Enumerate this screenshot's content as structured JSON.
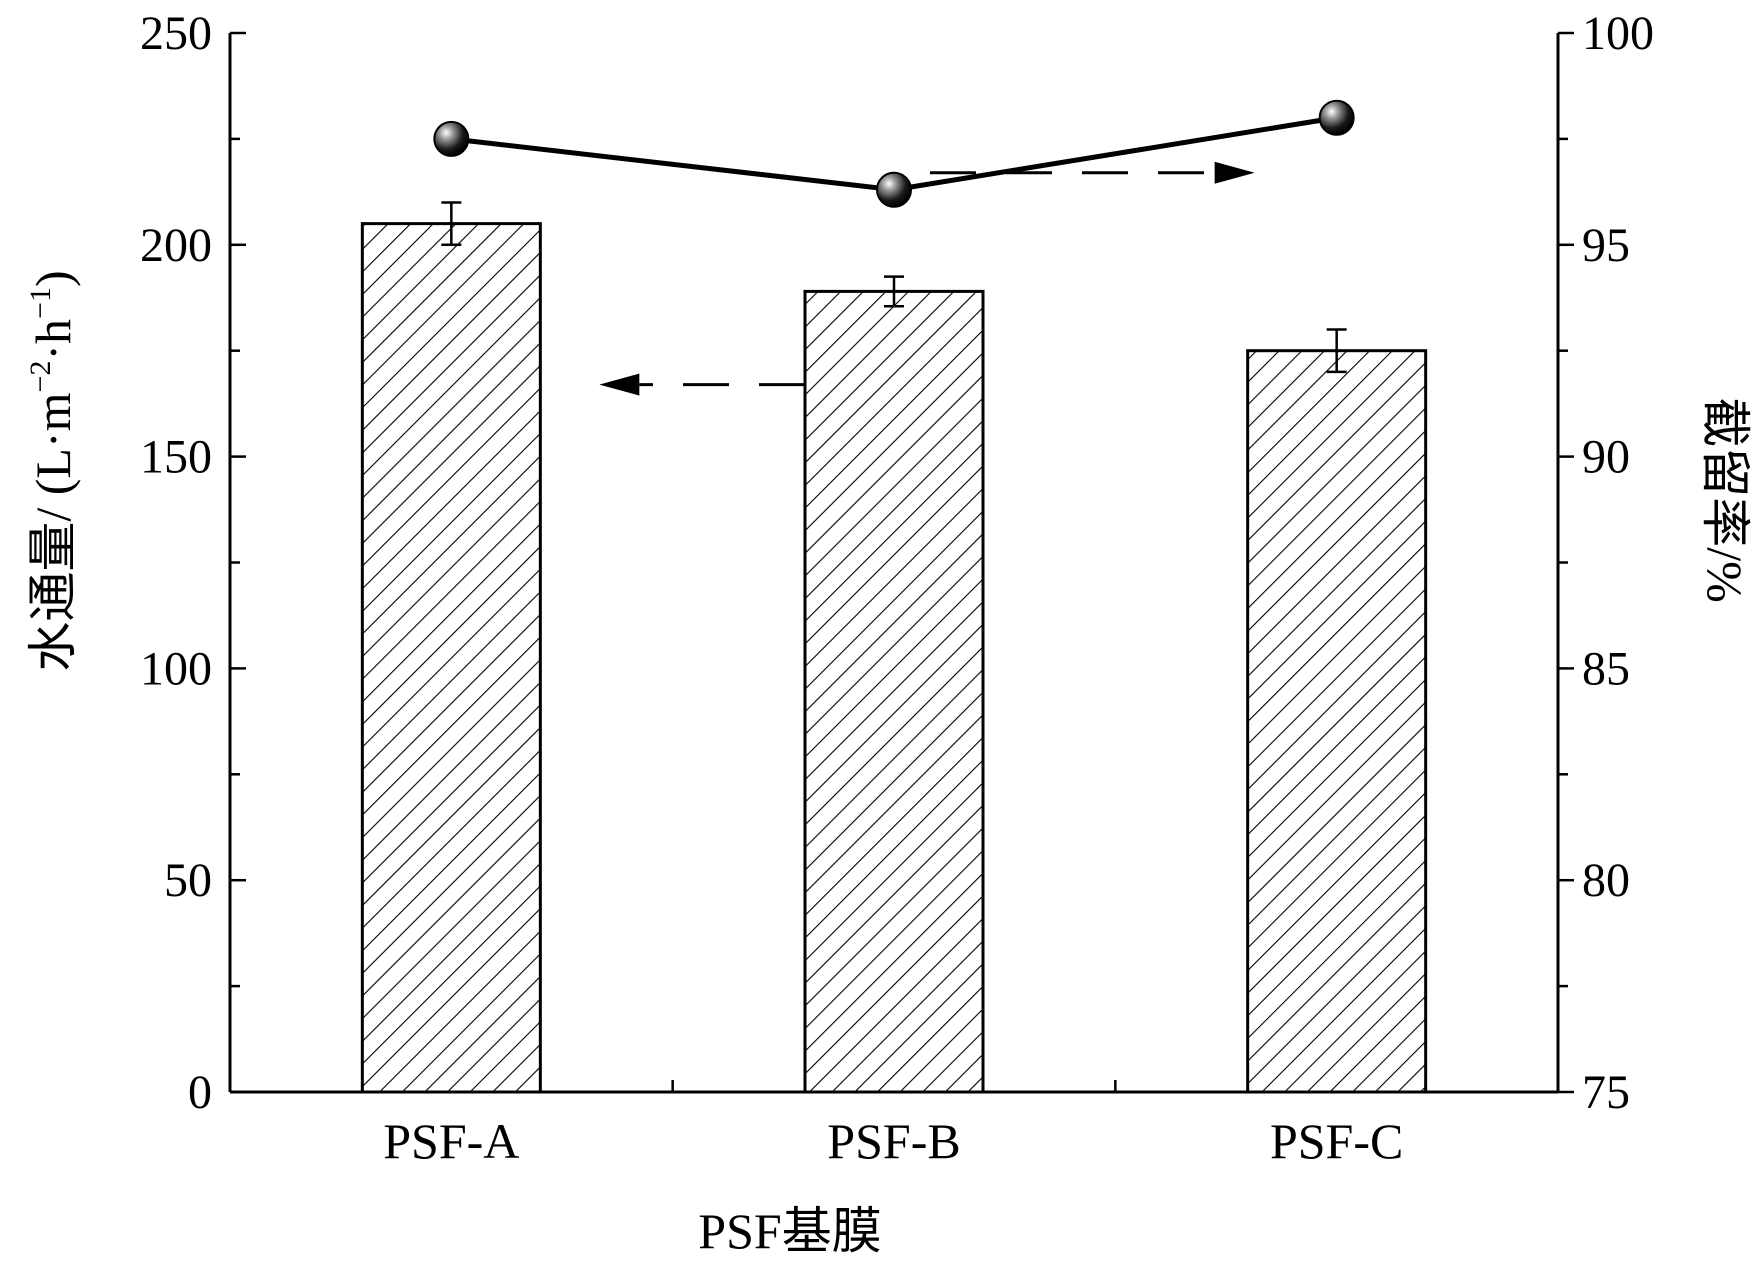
{
  "chart_data": {
    "type": "bar",
    "categories": [
      "PSF-A",
      "PSF-B",
      "PSF-C"
    ],
    "xlabel": "PSF基膜",
    "ylabel": "水通量/ (L·m⁻²·h⁻¹)",
    "ylabel_parts": {
      "main": "水通量/ (L",
      "dot1": "·m",
      "sup1": "−2",
      "dot2": "·h",
      "sup2": "−1",
      "close": ")"
    },
    "y2label": "截留率/%",
    "ylim": [
      0,
      250
    ],
    "y2lim": [
      75,
      100
    ],
    "yticks": [
      0,
      50,
      100,
      150,
      200,
      250
    ],
    "y2ticks": [
      75,
      80,
      85,
      90,
      95,
      100
    ],
    "series": [
      {
        "kind": "bar",
        "axis": "left",
        "values": [
          205,
          189,
          175
        ],
        "errors": [
          5,
          3.5,
          5
        ]
      },
      {
        "kind": "line",
        "axis": "right",
        "values": [
          97.5,
          96.3,
          98.0
        ],
        "errors": [
          0.3,
          0.3,
          0.3
        ]
      }
    ],
    "arrows": [
      {
        "axis": "left",
        "direction": "left",
        "y": 167
      },
      {
        "axis": "right",
        "direction": "right",
        "y": 96.7
      }
    ],
    "grid": false,
    "legend": "none"
  }
}
